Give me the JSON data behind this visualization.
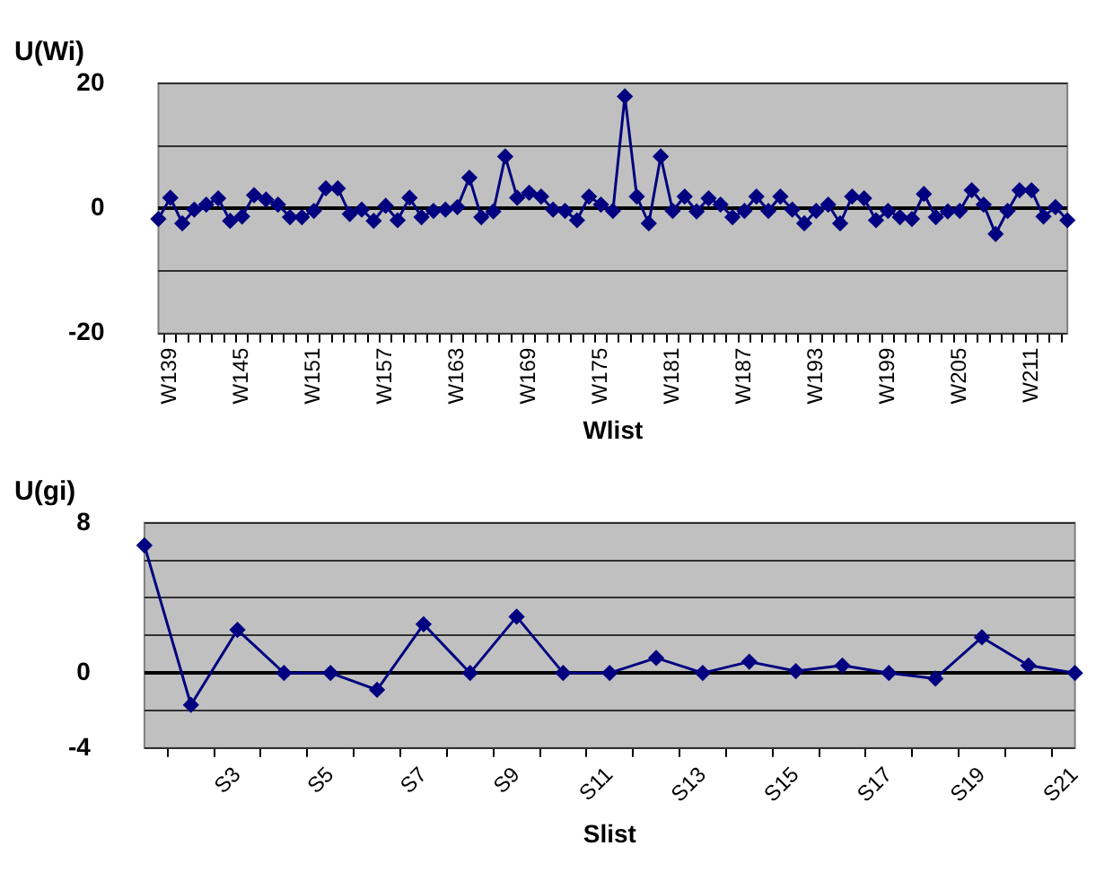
{
  "chart_data": [
    {
      "type": "line",
      "ylabel": "U(Wi)",
      "xlabel": "Wlist",
      "categories": [
        null,
        "W139",
        null,
        null,
        null,
        null,
        null,
        "W145",
        null,
        null,
        null,
        null,
        null,
        "W151",
        null,
        null,
        null,
        null,
        null,
        "W157",
        null,
        null,
        null,
        null,
        null,
        "W163",
        null,
        null,
        null,
        null,
        null,
        "W169",
        null,
        null,
        null,
        null,
        null,
        "W175",
        null,
        null,
        null,
        null,
        null,
        "W181",
        null,
        null,
        null,
        null,
        null,
        "W187",
        null,
        null,
        null,
        null,
        null,
        "W193",
        null,
        null,
        null,
        null,
        null,
        "W199",
        null,
        null,
        null,
        null,
        null,
        "W205",
        null,
        null,
        null,
        null,
        null,
        "W211",
        null,
        null,
        null
      ],
      "series": [
        {
          "color": "#000080",
          "values": [
            -1.7,
            1.7,
            -2.4,
            -0.2,
            0.6,
            1.6,
            -2.0,
            -1.3,
            2.1,
            1.4,
            0.6,
            -1.4,
            -1.4,
            -0.4,
            3.2,
            3.2,
            -0.9,
            -0.2,
            -2.0,
            0.4,
            -1.9,
            1.7,
            -1.4,
            -0.4,
            -0.2,
            0.2,
            4.9,
            -1.4,
            -0.5,
            8.3,
            1.7,
            2.5,
            1.9,
            -0.2,
            -0.4,
            -1.9,
            1.9,
            0.6,
            -0.4,
            17.9,
            1.9,
            -2.4,
            8.3,
            -0.4,
            1.9,
            -0.5,
            1.6,
            0.6,
            -1.4,
            -0.4,
            1.9,
            -0.4,
            1.9,
            -0.2,
            -2.4,
            -0.4,
            0.6,
            -2.4,
            1.9,
            1.6,
            -1.9,
            -0.4,
            -1.4,
            -1.7,
            2.3,
            -1.4,
            -0.5,
            -0.4,
            2.9,
            0.6,
            -4.1,
            -0.4,
            2.9,
            2.9,
            -1.3,
            0.2,
            -1.9
          ]
        }
      ],
      "ylim": [
        -20,
        20
      ],
      "yticks": [
        -20,
        {
          "value": -10,
          "label": null
        },
        0,
        {
          "value": 10,
          "label": null
        },
        20
      ],
      "grid": "y",
      "marker": "diamond",
      "line_style": "solid",
      "legend": false
    },
    {
      "type": "line",
      "ylabel": "U(gi)",
      "xlabel": "Slist",
      "categories": [
        null,
        null,
        "S3",
        null,
        "S5",
        null,
        "S7",
        null,
        "S9",
        null,
        "S11",
        null,
        "S13",
        null,
        "S15",
        null,
        "S17",
        null,
        "S19",
        null,
        "S21"
      ],
      "series": [
        {
          "color": "#000080",
          "values": [
            6.8,
            -1.7,
            2.3,
            0,
            0,
            -0.9,
            2.6,
            0,
            3.0,
            0,
            0,
            0.8,
            0,
            0.6,
            0.1,
            0.4,
            0,
            -0.3,
            1.9,
            0.4,
            0
          ]
        }
      ],
      "ylim": [
        -4,
        8
      ],
      "yticks": [
        -4,
        {
          "value": -2,
          "label": null
        },
        0,
        {
          "value": 2,
          "label": null
        },
        {
          "value": 4,
          "label": null
        },
        {
          "value": 6,
          "label": null
        },
        8
      ],
      "grid": "y",
      "marker": "diamond",
      "line_style": "solid",
      "legend": false
    }
  ]
}
